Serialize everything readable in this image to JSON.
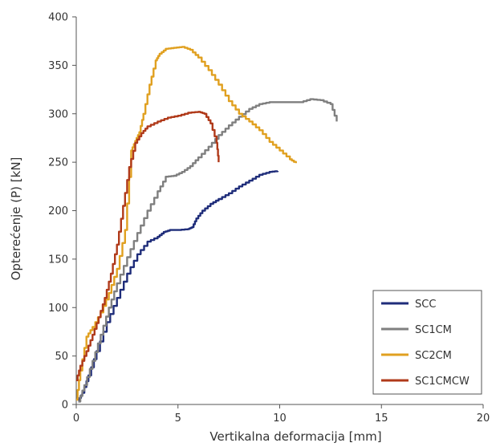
{
  "chart_data": {
    "type": "line",
    "xlabel": "Vertikalna deformacija [mm]",
    "ylabel": "Opterećenje (P) [kN]",
    "xlim": [
      0,
      20
    ],
    "ylim": [
      0,
      400
    ],
    "xticks": [
      "0",
      "5",
      "10",
      "15",
      "20"
    ],
    "yticks": [
      "0",
      "50",
      "100",
      "150",
      "200",
      "250",
      "300",
      "350",
      "400"
    ],
    "grid": false,
    "legend_position": "bottom-right",
    "series": [
      {
        "name": "SCC",
        "color": "#1f2d7a",
        "points": [
          [
            0.1,
            4
          ],
          [
            0.3,
            12
          ],
          [
            0.6,
            30
          ],
          [
            1.0,
            55
          ],
          [
            1.5,
            85
          ],
          [
            2.0,
            110
          ],
          [
            2.5,
            135
          ],
          [
            3.0,
            155
          ],
          [
            3.5,
            168
          ],
          [
            4.0,
            173
          ],
          [
            4.3,
            178
          ],
          [
            4.6,
            180
          ],
          [
            5.0,
            180
          ],
          [
            5.5,
            181
          ],
          [
            5.7,
            183
          ],
          [
            5.9,
            192
          ],
          [
            6.2,
            200
          ],
          [
            6.6,
            207
          ],
          [
            7.0,
            212
          ],
          [
            7.5,
            218
          ],
          [
            8.0,
            225
          ],
          [
            8.5,
            231
          ],
          [
            9.0,
            237
          ],
          [
            9.5,
            240
          ],
          [
            9.9,
            241
          ]
        ]
      },
      {
        "name": "SC1CM",
        "color": "#7f7f7f",
        "points": [
          [
            0.1,
            3
          ],
          [
            0.4,
            20
          ],
          [
            0.8,
            45
          ],
          [
            1.2,
            72
          ],
          [
            1.6,
            100
          ],
          [
            2.0,
            125
          ],
          [
            2.5,
            152
          ],
          [
            3.0,
            177
          ],
          [
            3.5,
            200
          ],
          [
            4.0,
            220
          ],
          [
            4.4,
            235
          ],
          [
            4.8,
            236
          ],
          [
            5.2,
            240
          ],
          [
            5.6,
            246
          ],
          [
            6.0,
            255
          ],
          [
            6.5,
            266
          ],
          [
            7.0,
            278
          ],
          [
            7.5,
            288
          ],
          [
            8.0,
            297
          ],
          [
            8.5,
            305
          ],
          [
            9.0,
            310
          ],
          [
            9.5,
            312
          ],
          [
            10.0,
            312
          ],
          [
            10.5,
            312
          ],
          [
            11.0,
            312
          ],
          [
            11.5,
            315
          ],
          [
            12.0,
            314
          ],
          [
            12.5,
            310
          ],
          [
            12.8,
            292
          ]
        ]
      },
      {
        "name": "SC2CM",
        "color": "#e0a020",
        "points": [
          [
            0.0,
            5
          ],
          [
            0.2,
            35
          ],
          [
            0.5,
            70
          ],
          [
            0.8,
            80
          ],
          [
            1.2,
            95
          ],
          [
            1.6,
            115
          ],
          [
            2.0,
            140
          ],
          [
            2.4,
            180
          ],
          [
            2.7,
            262
          ],
          [
            2.9,
            272
          ],
          [
            3.1,
            281
          ],
          [
            3.3,
            300
          ],
          [
            3.6,
            330
          ],
          [
            3.9,
            355
          ],
          [
            4.1,
            362
          ],
          [
            4.4,
            367
          ],
          [
            4.8,
            368
          ],
          [
            5.2,
            369
          ],
          [
            5.6,
            366
          ],
          [
            6.0,
            358
          ],
          [
            6.5,
            345
          ],
          [
            7.0,
            330
          ],
          [
            7.5,
            313
          ],
          [
            8.0,
            300
          ],
          [
            8.5,
            292
          ],
          [
            9.0,
            283
          ],
          [
            9.5,
            271
          ],
          [
            10.0,
            262
          ],
          [
            10.5,
            253
          ],
          [
            10.8,
            249
          ]
        ]
      },
      {
        "name": "SC1CMCW",
        "color": "#b03a1a",
        "points": [
          [
            0.0,
            25
          ],
          [
            0.2,
            40
          ],
          [
            0.5,
            55
          ],
          [
            0.8,
            72
          ],
          [
            1.1,
            90
          ],
          [
            1.4,
            110
          ],
          [
            1.7,
            135
          ],
          [
            2.0,
            165
          ],
          [
            2.3,
            205
          ],
          [
            2.6,
            245
          ],
          [
            2.9,
            270
          ],
          [
            3.2,
            280
          ],
          [
            3.5,
            287
          ],
          [
            4.0,
            292
          ],
          [
            4.5,
            296
          ],
          [
            5.0,
            298
          ],
          [
            5.5,
            301
          ],
          [
            6.0,
            302
          ],
          [
            6.3,
            300
          ],
          [
            6.6,
            290
          ],
          [
            6.9,
            270
          ],
          [
            7.0,
            250
          ]
        ]
      }
    ]
  }
}
